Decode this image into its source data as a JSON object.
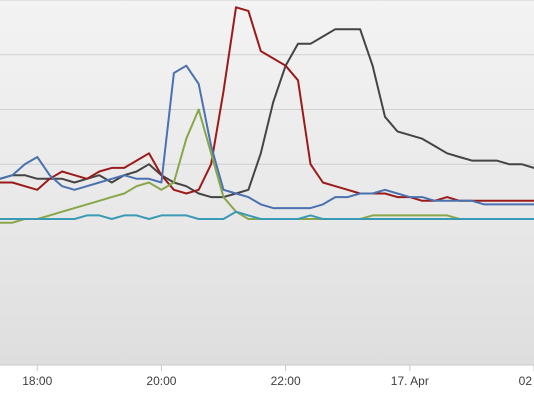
{
  "chart_data": {
    "type": "line",
    "title": "",
    "xlabel": "",
    "ylabel": "",
    "grid": true,
    "legend": "none",
    "x_unit": "hours",
    "xlim": [
      17.4,
      26.0
    ],
    "ylim": [
      0,
      100
    ],
    "x_ticks": [
      {
        "x": 18,
        "label": "18:00"
      },
      {
        "x": 20,
        "label": "20:00"
      },
      {
        "x": 22,
        "label": "22:00"
      },
      {
        "x": 24,
        "label": "17. Apr"
      },
      {
        "x": 26,
        "label": "02"
      }
    ],
    "y_gridlines": [
      55,
      70,
      85,
      100
    ],
    "series": [
      {
        "color": "#444444",
        "x": [
          17.4,
          17.6,
          17.8,
          18.0,
          18.2,
          18.4,
          18.6,
          18.8,
          19.0,
          19.2,
          19.4,
          19.6,
          19.8,
          20.0,
          20.2,
          20.4,
          20.6,
          20.8,
          21.0,
          21.2,
          21.4,
          21.6,
          21.8,
          22.0,
          22.2,
          22.4,
          22.6,
          22.8,
          23.0,
          23.2,
          23.4,
          23.6,
          23.8,
          24.0,
          24.2,
          24.4,
          24.6,
          24.8,
          25.0,
          25.2,
          25.4,
          25.6,
          25.8,
          26.0
        ],
        "y": [
          51,
          52,
          52,
          51,
          51,
          51,
          50,
          51,
          52,
          50,
          52,
          53,
          55,
          52,
          50,
          49,
          47,
          46,
          46,
          47,
          48,
          58,
          72,
          82,
          88,
          88,
          90,
          92,
          92,
          92,
          82,
          68,
          64,
          63,
          62,
          60,
          58,
          57,
          56,
          56,
          56,
          55,
          55,
          54
        ]
      },
      {
        "color": "#9b1b1b",
        "x": [
          17.4,
          17.6,
          17.8,
          18.0,
          18.2,
          18.4,
          18.6,
          18.8,
          19.0,
          19.2,
          19.4,
          19.6,
          19.8,
          20.0,
          20.2,
          20.4,
          20.6,
          20.8,
          21.0,
          21.2,
          21.4,
          21.6,
          21.8,
          22.0,
          22.2,
          22.4,
          22.6,
          22.8,
          23.0,
          23.2,
          23.4,
          23.6,
          23.8,
          24.0,
          24.2,
          24.4,
          24.6,
          24.8,
          25.0,
          25.2,
          25.4,
          25.6,
          25.8,
          26.0
        ],
        "y": [
          50,
          50,
          49,
          48,
          51,
          53,
          52,
          51,
          53,
          54,
          54,
          56,
          58,
          52,
          48,
          47,
          48,
          55,
          75,
          98,
          97,
          86,
          84,
          82,
          78,
          55,
          50,
          49,
          48,
          47,
          47,
          47,
          46,
          46,
          45,
          45,
          46,
          45,
          45,
          45,
          45,
          45,
          45,
          45
        ]
      },
      {
        "color": "#4a72b0",
        "x": [
          17.4,
          17.6,
          17.8,
          18.0,
          18.2,
          18.4,
          18.6,
          18.8,
          19.0,
          19.2,
          19.4,
          19.6,
          19.8,
          20.0,
          20.2,
          20.4,
          20.6,
          20.8,
          21.0,
          21.2,
          21.4,
          21.6,
          21.8,
          22.0,
          22.2,
          22.4,
          22.6,
          22.8,
          23.0,
          23.2,
          23.4,
          23.6,
          23.8,
          24.0,
          24.2,
          24.4,
          24.6,
          24.8,
          25.0,
          25.2,
          25.4,
          25.6,
          25.8,
          26.0
        ],
        "y": [
          51,
          52,
          55,
          57,
          52,
          49,
          48,
          49,
          50,
          51,
          52,
          51,
          51,
          50,
          80,
          82,
          77,
          60,
          48,
          47,
          46,
          44,
          43,
          43,
          43,
          43,
          44,
          46,
          46,
          47,
          47,
          48,
          47,
          46,
          46,
          45,
          45,
          45,
          45,
          44,
          44,
          44,
          44,
          44
        ]
      },
      {
        "color": "#8aa64a",
        "x": [
          17.4,
          17.6,
          17.8,
          18.0,
          18.2,
          18.4,
          18.6,
          18.8,
          19.0,
          19.2,
          19.4,
          19.6,
          19.8,
          20.0,
          20.2,
          20.4,
          20.6,
          20.8,
          21.0,
          21.2,
          21.4,
          21.6,
          21.8,
          22.0,
          22.2,
          22.4,
          22.6,
          22.8,
          23.0,
          23.2,
          23.4,
          23.6,
          23.8,
          24.0,
          24.2,
          24.4,
          24.6,
          24.8,
          25.0,
          25.2,
          25.4,
          25.6,
          25.8,
          26.0
        ],
        "y": [
          39,
          39,
          40,
          40,
          41,
          42,
          43,
          44,
          45,
          46,
          47,
          49,
          50,
          48,
          50,
          62,
          70,
          58,
          46,
          42,
          40,
          40,
          40,
          40,
          40,
          40,
          40,
          40,
          40,
          40,
          41,
          41,
          41,
          41,
          41,
          41,
          41,
          40,
          40,
          40,
          40,
          40,
          40,
          40
        ]
      },
      {
        "color": "#3a9ab5",
        "x": [
          17.4,
          17.6,
          17.8,
          18.0,
          18.2,
          18.4,
          18.6,
          18.8,
          19.0,
          19.2,
          19.4,
          19.6,
          19.8,
          20.0,
          20.2,
          20.4,
          20.6,
          20.8,
          21.0,
          21.2,
          21.4,
          21.6,
          21.8,
          22.0,
          22.2,
          22.4,
          22.6,
          22.8,
          23.0,
          23.2,
          23.4,
          23.6,
          23.8,
          24.0,
          24.2,
          24.4,
          24.6,
          24.8,
          25.0,
          25.2,
          25.4,
          25.6,
          25.8,
          26.0
        ],
        "y": [
          40,
          40,
          40,
          40,
          40,
          40,
          40,
          41,
          41,
          40,
          41,
          41,
          40,
          41,
          41,
          41,
          40,
          40,
          40,
          42,
          41,
          40,
          40,
          40,
          40,
          41,
          40,
          40,
          40,
          40,
          40,
          40,
          40,
          40,
          40,
          40,
          40,
          40,
          40,
          40,
          40,
          40,
          40,
          40
        ]
      }
    ]
  }
}
